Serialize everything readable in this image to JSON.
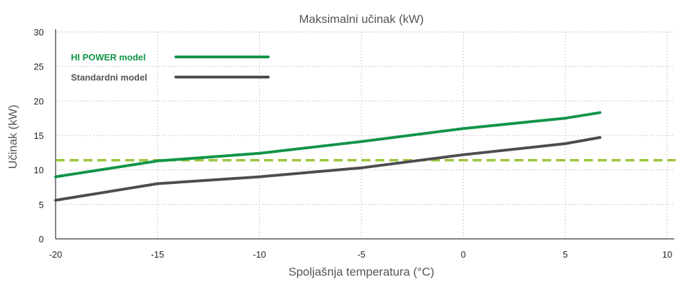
{
  "chart_data": {
    "type": "line",
    "title": "Maksimalni učinak (kW)",
    "xlabel": "Spoljašnja temperatura (°C)",
    "ylabel": "Učinak (kW)",
    "xlim": [
      -20,
      10
    ],
    "ylim": [
      0,
      30
    ],
    "xticks": [
      "-20",
      "-15",
      "-10",
      "-5",
      "0",
      "5",
      "10"
    ],
    "yticks": [
      "0",
      "5",
      "10",
      "15",
      "20",
      "25",
      "30"
    ],
    "grid": true,
    "legend_position": "top-left",
    "series": [
      {
        "name": "HI POWER model",
        "color": "#119447",
        "x": [
          -20,
          -15,
          -10,
          -5,
          0,
          5,
          6.7
        ],
        "y": [
          9.0,
          11.3,
          12.4,
          14.1,
          16.0,
          17.5,
          18.3
        ]
      },
      {
        "name": "Standardni model",
        "color": "#4d4d4f",
        "x": [
          -20,
          -15,
          -10,
          -5,
          0,
          5,
          6.7
        ],
        "y": [
          5.6,
          8.0,
          9.0,
          10.3,
          12.2,
          13.8,
          14.7
        ]
      }
    ],
    "reference_lines": [
      {
        "y": 11.4,
        "color": "#9bc63b",
        "style": "dashed"
      }
    ]
  }
}
